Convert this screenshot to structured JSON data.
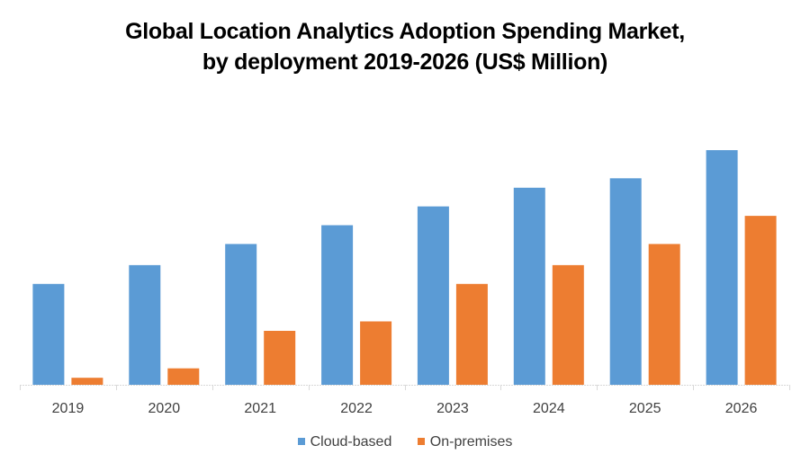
{
  "chart_data": {
    "type": "bar",
    "title": "Global Location Analytics Adoption Spending Market,",
    "subtitle": "by deployment 2019-2026 (US$ Million)",
    "xlabel": "",
    "ylabel": "",
    "categories": [
      "2019",
      "2020",
      "2021",
      "2022",
      "2023",
      "2024",
      "2025",
      "2026"
    ],
    "series": [
      {
        "name": "Cloud-based",
        "color": "#5B9BD5",
        "values": [
          43,
          51,
          60,
          68,
          76,
          84,
          88,
          100
        ]
      },
      {
        "name": "On-premises",
        "color": "#ED7D31",
        "values": [
          3,
          7,
          23,
          27,
          43,
          51,
          60,
          72
        ]
      }
    ],
    "ylim": [
      0,
      100
    ],
    "y_axis_visible": false,
    "grid": false,
    "legend": "bottom-center",
    "axis_color": "#D9D9D9"
  }
}
